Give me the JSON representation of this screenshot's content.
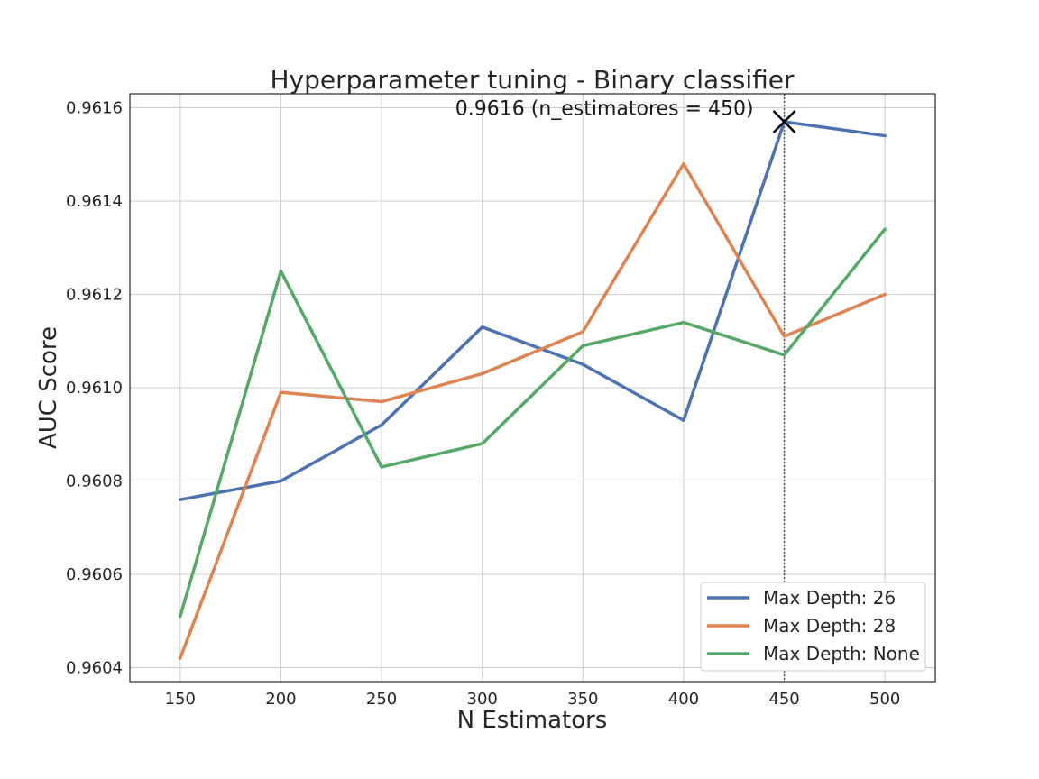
{
  "chart_data": {
    "type": "line",
    "title": "Hyperparameter tuning - Binary classifier",
    "xlabel": "N Estimators",
    "ylabel": "AUC Score",
    "x": [
      150,
      200,
      250,
      300,
      350,
      400,
      450,
      500
    ],
    "xlim": [
      125,
      525
    ],
    "ylim": [
      0.96037,
      0.96163
    ],
    "yticks": [
      "0.9604",
      "0.9606",
      "0.9608",
      "0.9610",
      "0.9612",
      "0.9614",
      "0.9616"
    ],
    "xticks": [
      "150",
      "200",
      "250",
      "300",
      "350",
      "400",
      "450",
      "500"
    ],
    "grid": true,
    "legend_position": "lower-right",
    "series": [
      {
        "name": "Max Depth: 26",
        "color": "#4c72b0",
        "values": [
          0.96076,
          0.9608,
          0.96092,
          0.96113,
          0.96105,
          0.96093,
          0.96157,
          0.96154
        ]
      },
      {
        "name": "Max Depth: 28",
        "color": "#dd8452",
        "values": [
          0.96042,
          0.96099,
          0.96097,
          0.96103,
          0.96112,
          0.96148,
          0.96111,
          0.9612
        ]
      },
      {
        "name": "Max Depth: None",
        "color": "#55a868",
        "values": [
          0.96051,
          0.96125,
          0.96083,
          0.96088,
          0.96109,
          0.96114,
          0.96107,
          0.96134
        ]
      }
    ],
    "best_point": {
      "x": 450,
      "y": 0.96157,
      "marker": "x",
      "color": "#000000"
    },
    "vline": {
      "x": 450,
      "style": "dotted",
      "color": "#555555"
    },
    "annotation": {
      "text": "0.9616 (n_estimatores = 450)",
      "x": 450,
      "y": 0.9616
    }
  }
}
